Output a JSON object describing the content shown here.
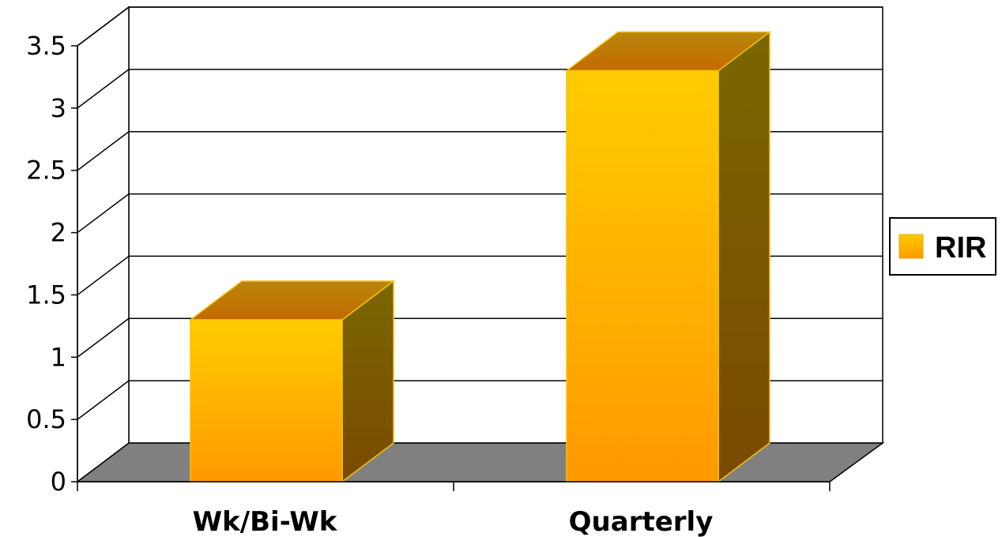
{
  "chart_data": {
    "type": "bar",
    "categories": [
      "Wk/Bi-Wk",
      "Quarterly"
    ],
    "series": [
      {
        "name": "RIR",
        "values": [
          1.3,
          3.3
        ]
      }
    ],
    "ylim": [
      0,
      3.5
    ],
    "yticks": [
      "0",
      "0.5",
      "1",
      "1.5",
      "2",
      "2.5",
      "3",
      "3.5"
    ],
    "grid": true,
    "legend_position": "right",
    "style": "3d-column"
  },
  "colors": {
    "bar_front_top": "#FFCC00",
    "bar_front_bottom": "#FF9900",
    "bar_top": "#C8900A",
    "bar_side": "#7A5A00",
    "floor": "#808080"
  }
}
